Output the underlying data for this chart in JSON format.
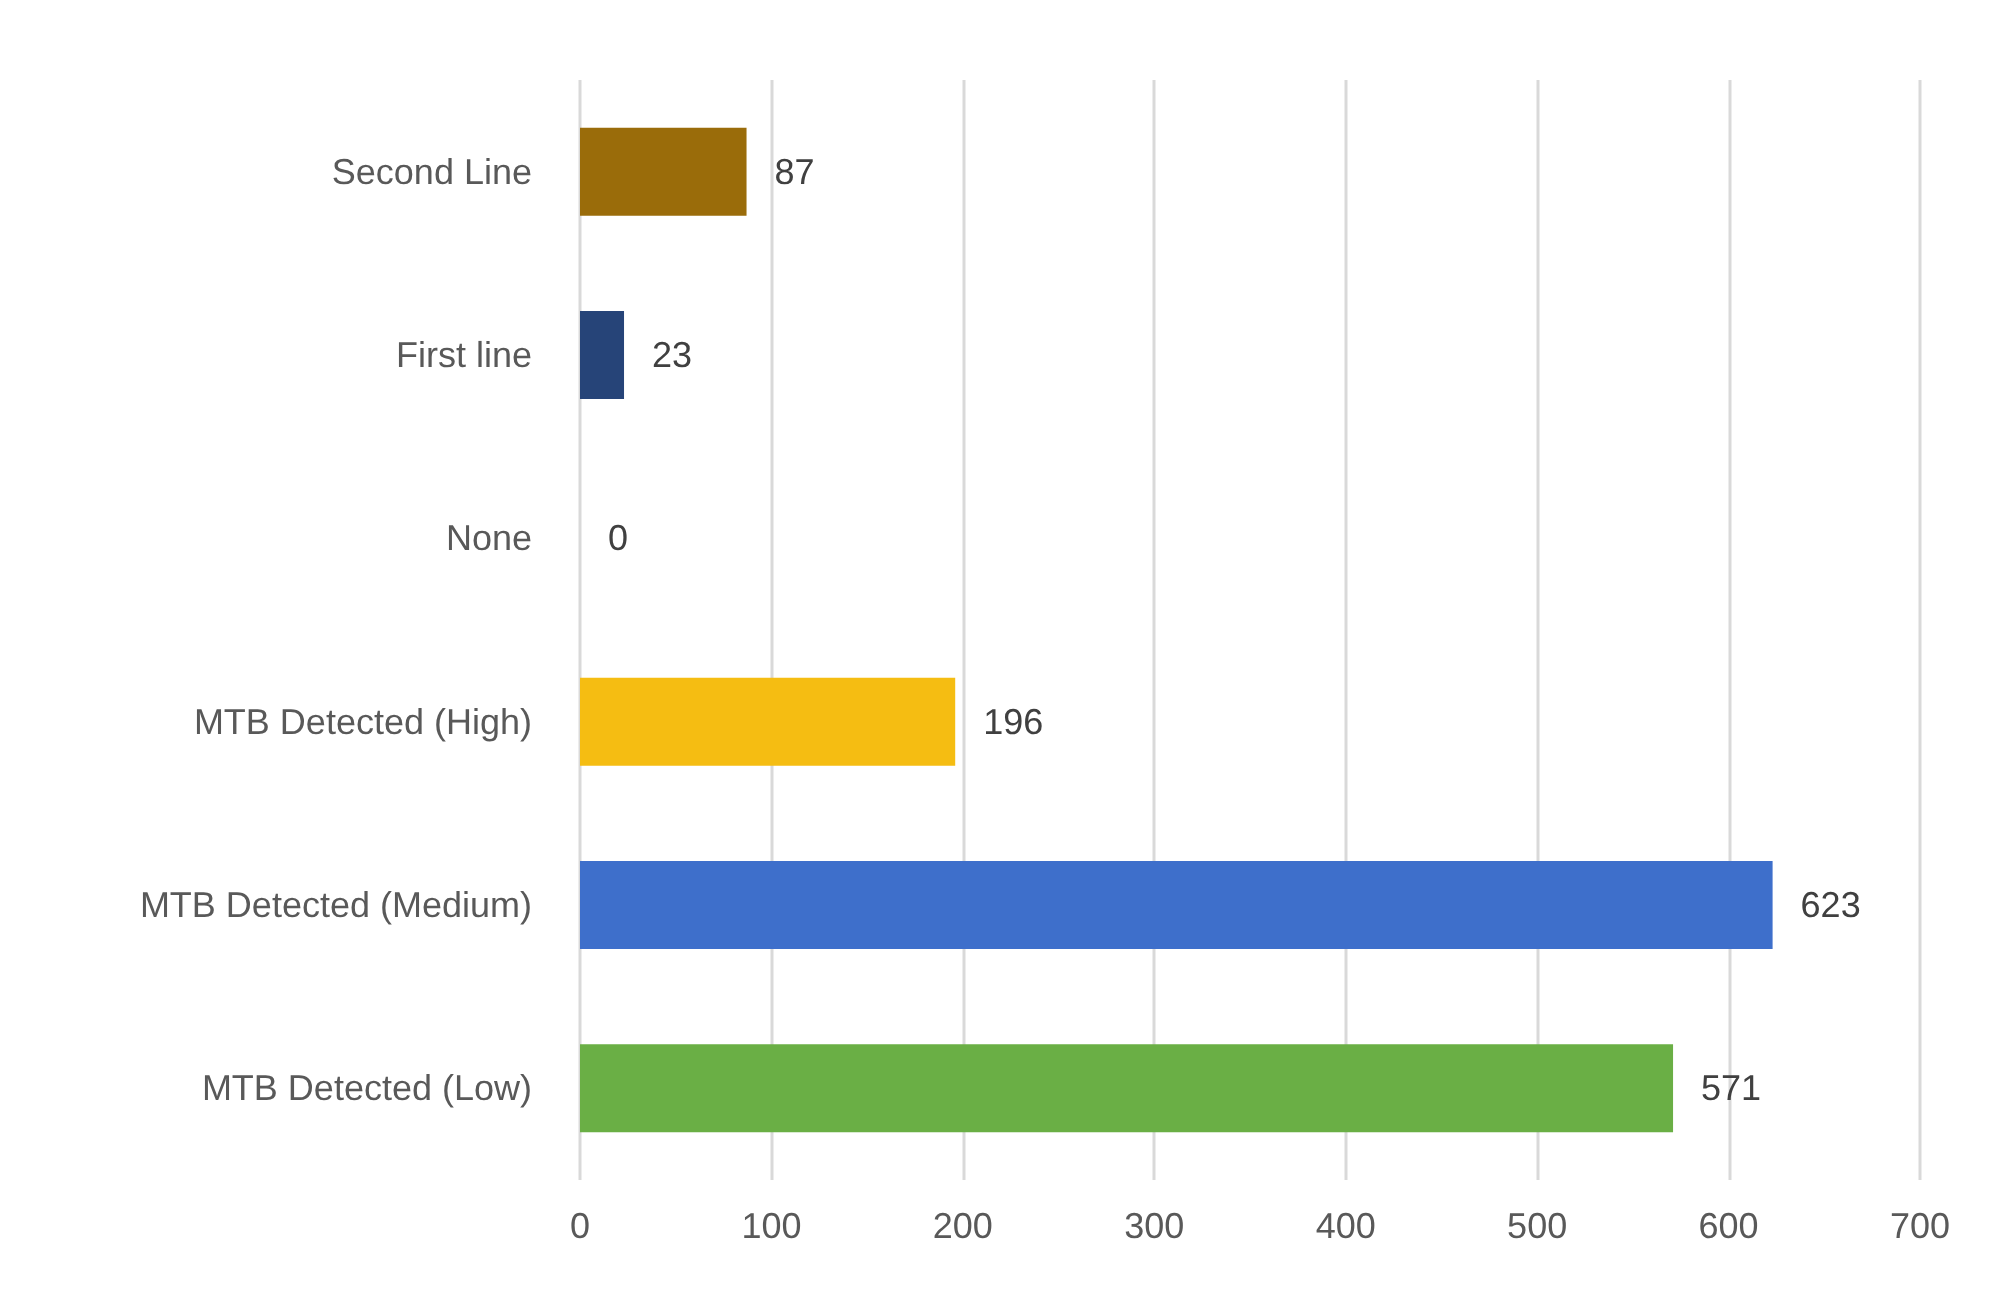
{
  "chart_data": {
    "type": "bar",
    "orientation": "horizontal",
    "categories": [
      "Second Line",
      "First line",
      "None",
      "MTB Detected (High)",
      "MTB Detected (Medium)",
      "MTB Detected (Low)"
    ],
    "values": [
      87,
      23,
      0,
      196,
      623,
      571
    ],
    "colors": [
      "#9a6c0a",
      "#264478",
      "#a5a5a5",
      "#f5bd12",
      "#3e6fcb",
      "#6aaf45"
    ],
    "xlim": [
      0,
      700
    ],
    "xticks": [
      0,
      100,
      200,
      300,
      400,
      500,
      600,
      700
    ],
    "grid": "x",
    "data_labels": true
  }
}
